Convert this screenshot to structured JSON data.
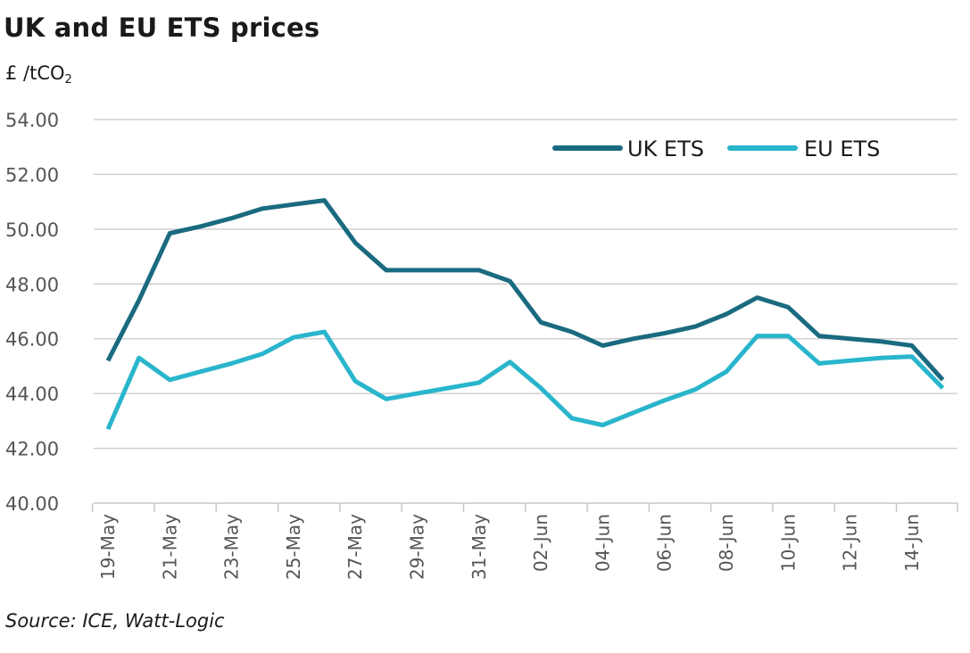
{
  "chart_data": {
    "type": "line",
    "title": "UK and EU ETS prices",
    "ylabel_prefix": "£ /tCO",
    "ylabel_sub": "2",
    "source": "Source: ICE, Watt-Logic",
    "ylim": [
      40,
      54
    ],
    "yticks": [
      "40.00",
      "42.00",
      "44.00",
      "46.00",
      "48.00",
      "50.00",
      "52.00",
      "54.00"
    ],
    "ytick_values": [
      40,
      42,
      44,
      46,
      48,
      50,
      52,
      54
    ],
    "x": [
      "19-May",
      "20-May",
      "21-May",
      "22-May",
      "23-May",
      "24-May",
      "25-May",
      "26-May",
      "27-May",
      "28-May",
      "29-May",
      "30-May",
      "31-May",
      "01-Jun",
      "02-Jun",
      "03-Jun",
      "04-Jun",
      "05-Jun",
      "06-Jun",
      "07-Jun",
      "08-Jun",
      "09-Jun",
      "10-Jun",
      "11-Jun",
      "12-Jun",
      "13-Jun",
      "14-Jun",
      "15-Jun"
    ],
    "xtick_labels": [
      "19-May",
      "21-May",
      "23-May",
      "25-May",
      "27-May",
      "29-May",
      "31-May",
      "02-Jun",
      "04-Jun",
      "06-Jun",
      "08-Jun",
      "10-Jun",
      "12-Jun",
      "14-Jun"
    ],
    "grid": true,
    "legend": "top-right",
    "series": [
      {
        "name": "UK ETS",
        "color": "#1a6a80",
        "values": [
          45.2,
          47.4,
          49.85,
          50.1,
          50.4,
          50.75,
          50.9,
          51.05,
          49.5,
          48.5,
          48.5,
          48.5,
          48.5,
          48.1,
          46.6,
          46.25,
          45.75,
          46.0,
          46.2,
          46.45,
          46.9,
          47.5,
          47.15,
          46.1,
          46.0,
          45.9,
          45.75,
          44.5
        ]
      },
      {
        "name": "EU ETS",
        "color": "#29b5cc",
        "values": [
          42.7,
          45.3,
          44.5,
          44.8,
          45.1,
          45.45,
          46.05,
          46.25,
          44.45,
          43.8,
          44.0,
          44.2,
          44.4,
          45.15,
          44.2,
          43.1,
          42.85,
          43.3,
          43.75,
          44.15,
          44.8,
          46.1,
          46.1,
          45.1,
          45.2,
          45.3,
          45.35,
          44.2
        ]
      }
    ]
  }
}
